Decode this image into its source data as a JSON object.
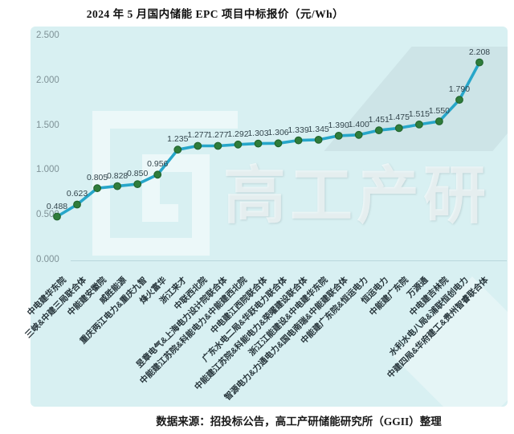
{
  "title": "2024 年 5 月国内储能 EPC 项目中标报价（元/Wh）",
  "footer": "数据来源：招投标公告，高工产研储能研究所（GGII）整理",
  "watermark": {
    "text": "高工产研"
  },
  "colors": {
    "panel_bg": "#d8f0f2",
    "line": "#27a6c9",
    "marker": "#2f7d3b",
    "marker_stroke": "#22652e",
    "data_label": "#33454c",
    "x_label": "#26343a",
    "y_label": "#7f9297"
  },
  "chart_data": {
    "type": "line",
    "title": "2024 年 5 月国内储能 EPC 项目中标报价（元/Wh）",
    "unit": "元/Wh",
    "categories": [
      "中电建华东院",
      "三峡&中建三局联合体",
      "中能建安徽院",
      "威胜能源",
      "重庆两江电力&重庆九智",
      "烽火富华",
      "浙江来才",
      "中联西北院",
      "昱章电气&上海电力设计院联合体",
      "中能建江苏院&科能电力&中能建西北院",
      "中电建江西院联合体",
      "广东水电二局&华跃电力联合体",
      "中能建江苏院&科能电力&荣曜建设联合体",
      "浙江江能建设&中电建华东院",
      "智源电力&力通电力&国电南瑞&中能建联合体",
      "中能建广东院&恒运电力",
      "恒运电力",
      "中能建广东院",
      "万源通",
      "中电建吉林院",
      "水利水电八局&浦联恒创电力",
      "中建四局&华府建工&贵州智睿联合体"
    ],
    "values": [
      0.488,
      0.623,
      0.805,
      0.828,
      0.85,
      0.956,
      1.235,
      1.277,
      1.277,
      1.292,
      1.303,
      1.306,
      1.339,
      1.345,
      1.39,
      1.4,
      1.451,
      1.475,
      1.515,
      1.55,
      1.79,
      2.208
    ],
    "xlabel": "",
    "ylabel": "",
    "ylim": [
      0,
      2.5
    ],
    "y_ticks": [
      2.5,
      2.0,
      1.5,
      1.0,
      0.5,
      0.0
    ],
    "y_tick_labels": [
      "2.500",
      "2.000",
      "1.500",
      "1.000",
      "0.500",
      "0.000"
    ],
    "grid": false,
    "legend": "none"
  }
}
